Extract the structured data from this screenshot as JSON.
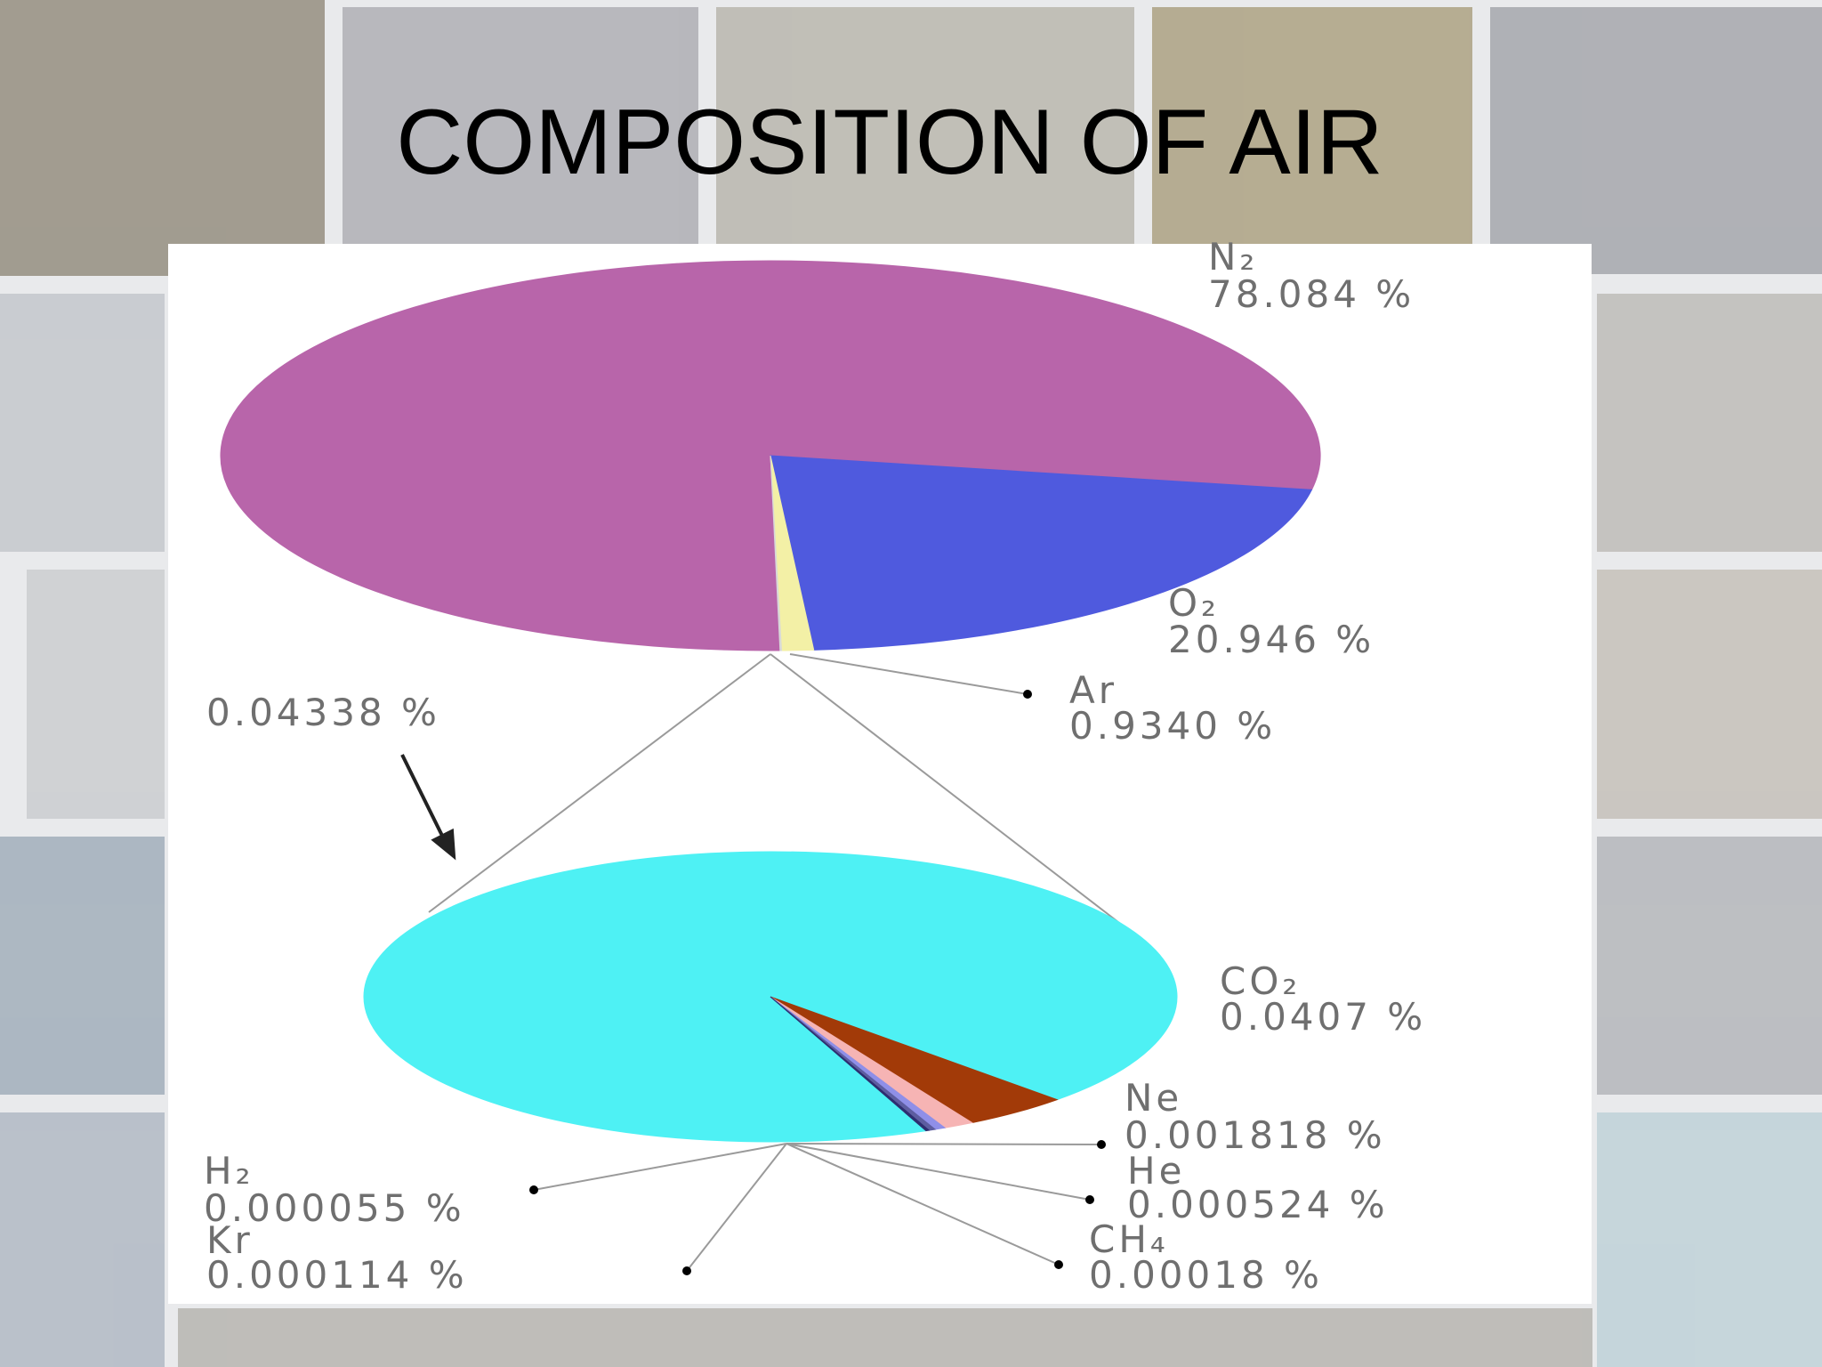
{
  "title": "COMPOSITION OF AIR",
  "chart_data": [
    {
      "type": "pie",
      "categories": [
        "N₂",
        "O₂",
        "Ar",
        null
      ],
      "values": [
        78.084,
        20.946,
        0.934,
        0.04338
      ],
      "value_labels": [
        "78.084 %",
        "20.946 %",
        "0.9340 %",
        "0.04338 %"
      ],
      "colors": [
        "#b865aa",
        "#4f5ade",
        "#f3f0a6",
        "#d8d8d8"
      ]
    },
    {
      "type": "pie",
      "categories": [
        "CO₂",
        "Ne",
        "He",
        "CH₄",
        "Kr",
        "H₂"
      ],
      "values": [
        0.0407,
        0.001818,
        0.000524,
        0.00018,
        0.000114,
        5.5e-05
      ],
      "value_labels": [
        "0.0407 %",
        "0.001818 %",
        "0.000524 %",
        "0.00018 %",
        "0.000114 %",
        "0.000055 %"
      ],
      "colors": [
        "#4ef1f4",
        "#a23a08",
        "#f6b4b4",
        "#8f8fe8",
        "#5d5da0",
        "#2e2e70"
      ]
    }
  ]
}
